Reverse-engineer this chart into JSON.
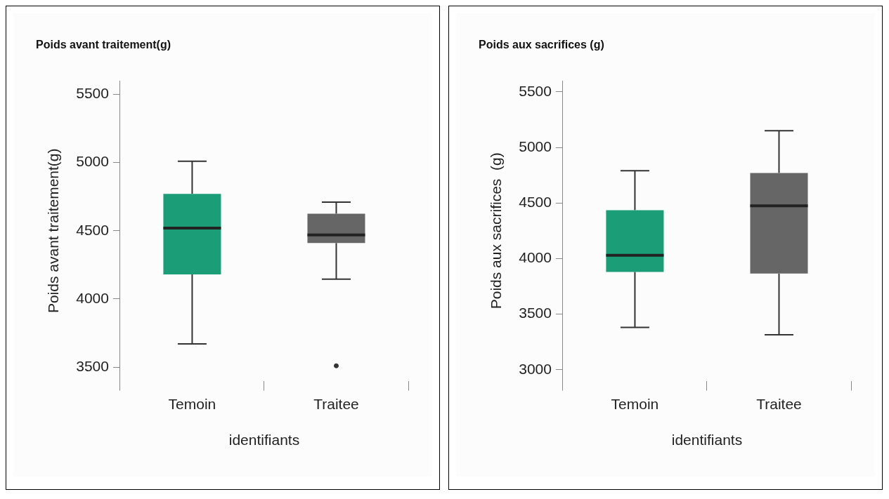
{
  "chart_data": [
    {
      "type": "box",
      "title": "Poids avant traitement(g)",
      "xlabel": "identifiants",
      "ylabel": "Poids avant traitement(g)",
      "categories": [
        "Temoin",
        "Traitee"
      ],
      "colors": [
        "#1b9e77",
        "#666666"
      ],
      "boxes": [
        {
          "low": 3670,
          "q1": 4180,
          "median": 4520,
          "q3": 4770,
          "high": 5010
        },
        {
          "low": 4145,
          "q1": 4410,
          "median": 4470,
          "q3": 4625,
          "high": 4710,
          "outliers": [
            3510
          ]
        }
      ],
      "ylim": [
        3400,
        5600
      ],
      "yticks": [
        3500,
        4000,
        4500,
        5000,
        5500
      ],
      "grid": false
    },
    {
      "type": "box",
      "title": "Poids aux sacrifices (g)",
      "xlabel": "identifiants",
      "ylabel": "Poids aux sacrifices  (g)",
      "categories": [
        "Temoin",
        "Traitee"
      ],
      "colors": [
        "#1b9e77",
        "#666666"
      ],
      "boxes": [
        {
          "low": 3380,
          "q1": 3880,
          "median": 4030,
          "q3": 4435,
          "high": 4790
        },
        {
          "low": 3315,
          "q1": 3865,
          "median": 4475,
          "q3": 4770,
          "high": 5150
        }
      ],
      "ylim": [
        2900,
        5600
      ],
      "yticks": [
        3000,
        3500,
        4000,
        4500,
        5000,
        5500
      ],
      "grid": false
    }
  ]
}
